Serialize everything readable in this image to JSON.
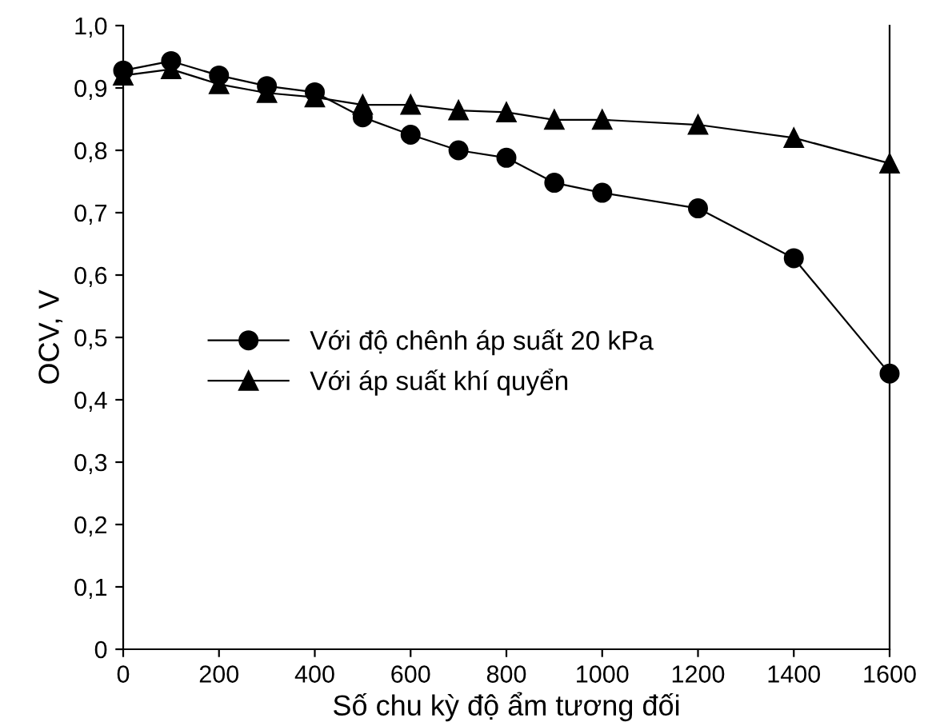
{
  "chart_data": {
    "type": "line",
    "xlabel": "Số chu kỳ độ ẩm tương đối",
    "ylabel": "OCV, V",
    "x": [
      0,
      100,
      200,
      300,
      400,
      500,
      600,
      700,
      800,
      900,
      1000,
      1200,
      1400,
      1600
    ],
    "series": [
      {
        "name": "Với độ chênh áp suất 20 kPa",
        "color": "#000000",
        "marker": "circle",
        "values": [
          0.928,
          0.943,
          0.92,
          0.903,
          0.893,
          0.853,
          0.825,
          0.8,
          0.788,
          0.748,
          0.732,
          0.707,
          0.627,
          0.442
        ]
      },
      {
        "name": "Với áp suất khí quyển",
        "color": "#000000",
        "marker": "triangle",
        "values": [
          0.92,
          0.93,
          0.906,
          0.892,
          0.885,
          0.873,
          0.873,
          0.864,
          0.861,
          0.849,
          0.849,
          0.841,
          0.82,
          0.779
        ]
      }
    ],
    "xlim": [
      0,
      1600
    ],
    "xticks": [
      0,
      200,
      400,
      600,
      800,
      1000,
      1200,
      1400,
      1600
    ],
    "ylim": [
      0,
      1.0
    ],
    "yticks": [
      0,
      {
        "value": 0.1,
        "label": "0,1"
      },
      {
        "value": 0.2,
        "label": "0,2"
      },
      {
        "value": 0.3,
        "label": "0,3"
      },
      {
        "value": 0.4,
        "label": "0,4"
      },
      {
        "value": 0.5,
        "label": "0,5"
      },
      {
        "value": 0.6,
        "label": "0,6"
      },
      {
        "value": 0.7,
        "label": "0,7"
      },
      {
        "value": 0.8,
        "label": "0,8"
      },
      {
        "value": 0.9,
        "label": "0,9"
      },
      {
        "value": 1.0,
        "label": "1,0"
      }
    ],
    "grid": false,
    "legend": "left",
    "line_style": "solid"
  }
}
